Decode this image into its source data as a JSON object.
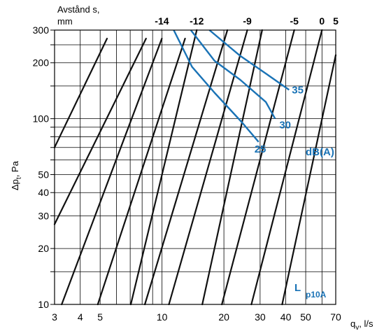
{
  "chart_data": {
    "type": "line",
    "title": "",
    "xlabel": "q",
    "xlabel_sub": "v",
    "xlabel_unit": ", l/s",
    "ylabel": "Δp",
    "ylabel_sub": "t",
    "ylabel_unit": ", Pa",
    "x_scale": "log",
    "y_scale": "log",
    "xlim": [
      3,
      70
    ],
    "ylim": [
      10,
      300
    ],
    "x_ticks": [
      {
        "value": 3,
        "label": "3"
      },
      {
        "value": 4,
        "label": "4"
      },
      {
        "value": 5,
        "label": "5"
      },
      {
        "value": 10,
        "label": "10"
      },
      {
        "value": 20,
        "label": "20"
      },
      {
        "value": 30,
        "label": "30"
      },
      {
        "value": 40,
        "label": "40"
      },
      {
        "value": 50,
        "label": "50"
      },
      {
        "value": 70,
        "label": "70"
      }
    ],
    "y_ticks": [
      {
        "value": 10,
        "label": "10"
      },
      {
        "value": 20,
        "label": "20"
      },
      {
        "value": 30,
        "label": "30"
      },
      {
        "value": 40,
        "label": "40"
      },
      {
        "value": 50,
        "label": "50"
      },
      {
        "value": 100,
        "label": "100"
      },
      {
        "value": 200,
        "label": "200"
      },
      {
        "value": 300,
        "label": "300"
      }
    ],
    "x_grid": [
      3,
      4,
      5,
      6,
      7,
      8,
      9,
      10,
      20,
      30,
      40,
      50,
      60,
      70
    ],
    "y_grid": [
      10,
      15,
      20,
      30,
      40,
      50,
      60,
      70,
      80,
      90,
      100,
      150,
      200,
      250,
      300
    ],
    "grid": true,
    "distance_header": "Avstånd s,",
    "distance_unit": "mm",
    "distance_series": [
      {
        "label": "",
        "points": [
          [
            3,
            70
          ],
          [
            5.4,
            270
          ]
        ]
      },
      {
        "label": "",
        "points": [
          [
            3,
            27
          ],
          [
            8.36,
            270
          ]
        ]
      },
      {
        "label": "-14",
        "points": [
          [
            3.25,
            10
          ],
          [
            9.98,
            270
          ]
        ]
      },
      {
        "label": "",
        "points": [
          [
            4.87,
            10
          ],
          [
            12.95,
            270
          ]
        ]
      },
      {
        "label": "-12",
        "points": [
          [
            7.05,
            10
          ],
          [
            14.75,
            300
          ]
        ]
      },
      {
        "label": "",
        "points": [
          [
            8.25,
            10
          ],
          [
            20.8,
            300
          ]
        ]
      },
      {
        "label": "-9",
        "points": [
          [
            10.8,
            10
          ],
          [
            26,
            300
          ]
        ]
      },
      {
        "label": "",
        "points": [
          [
            15.7,
            10
          ],
          [
            30.7,
            300
          ]
        ]
      },
      {
        "label": "-5",
        "points": [
          [
            19.55,
            10
          ],
          [
            44,
            300
          ]
        ]
      },
      {
        "label": "0",
        "points": [
          [
            27.2,
            10
          ],
          [
            60,
            300
          ]
        ]
      },
      {
        "label": "5",
        "points": [
          [
            38.4,
            10
          ],
          [
            70,
            220
          ]
        ]
      }
    ],
    "noise_label": "dB(A)",
    "noise_series": [
      {
        "label": "25",
        "points": [
          [
            11.4,
            300
          ],
          [
            14,
            190
          ],
          [
            18,
            138
          ],
          [
            24.6,
            95
          ],
          [
            29.5,
            75
          ]
        ]
      },
      {
        "label": "30",
        "points": [
          [
            13.8,
            300
          ],
          [
            18,
            205
          ],
          [
            24,
            162
          ],
          [
            32,
            123
          ],
          [
            35.5,
            100
          ]
        ]
      },
      {
        "label": "35",
        "points": [
          [
            17,
            300
          ],
          [
            24,
            218
          ],
          [
            32,
            175
          ],
          [
            41.5,
            143
          ]
        ]
      }
    ],
    "footnote_main": "L",
    "footnote_sub": "p10A",
    "line_color": "#111111",
    "noise_color": "#1a73b6",
    "grid_color": "#000000"
  }
}
